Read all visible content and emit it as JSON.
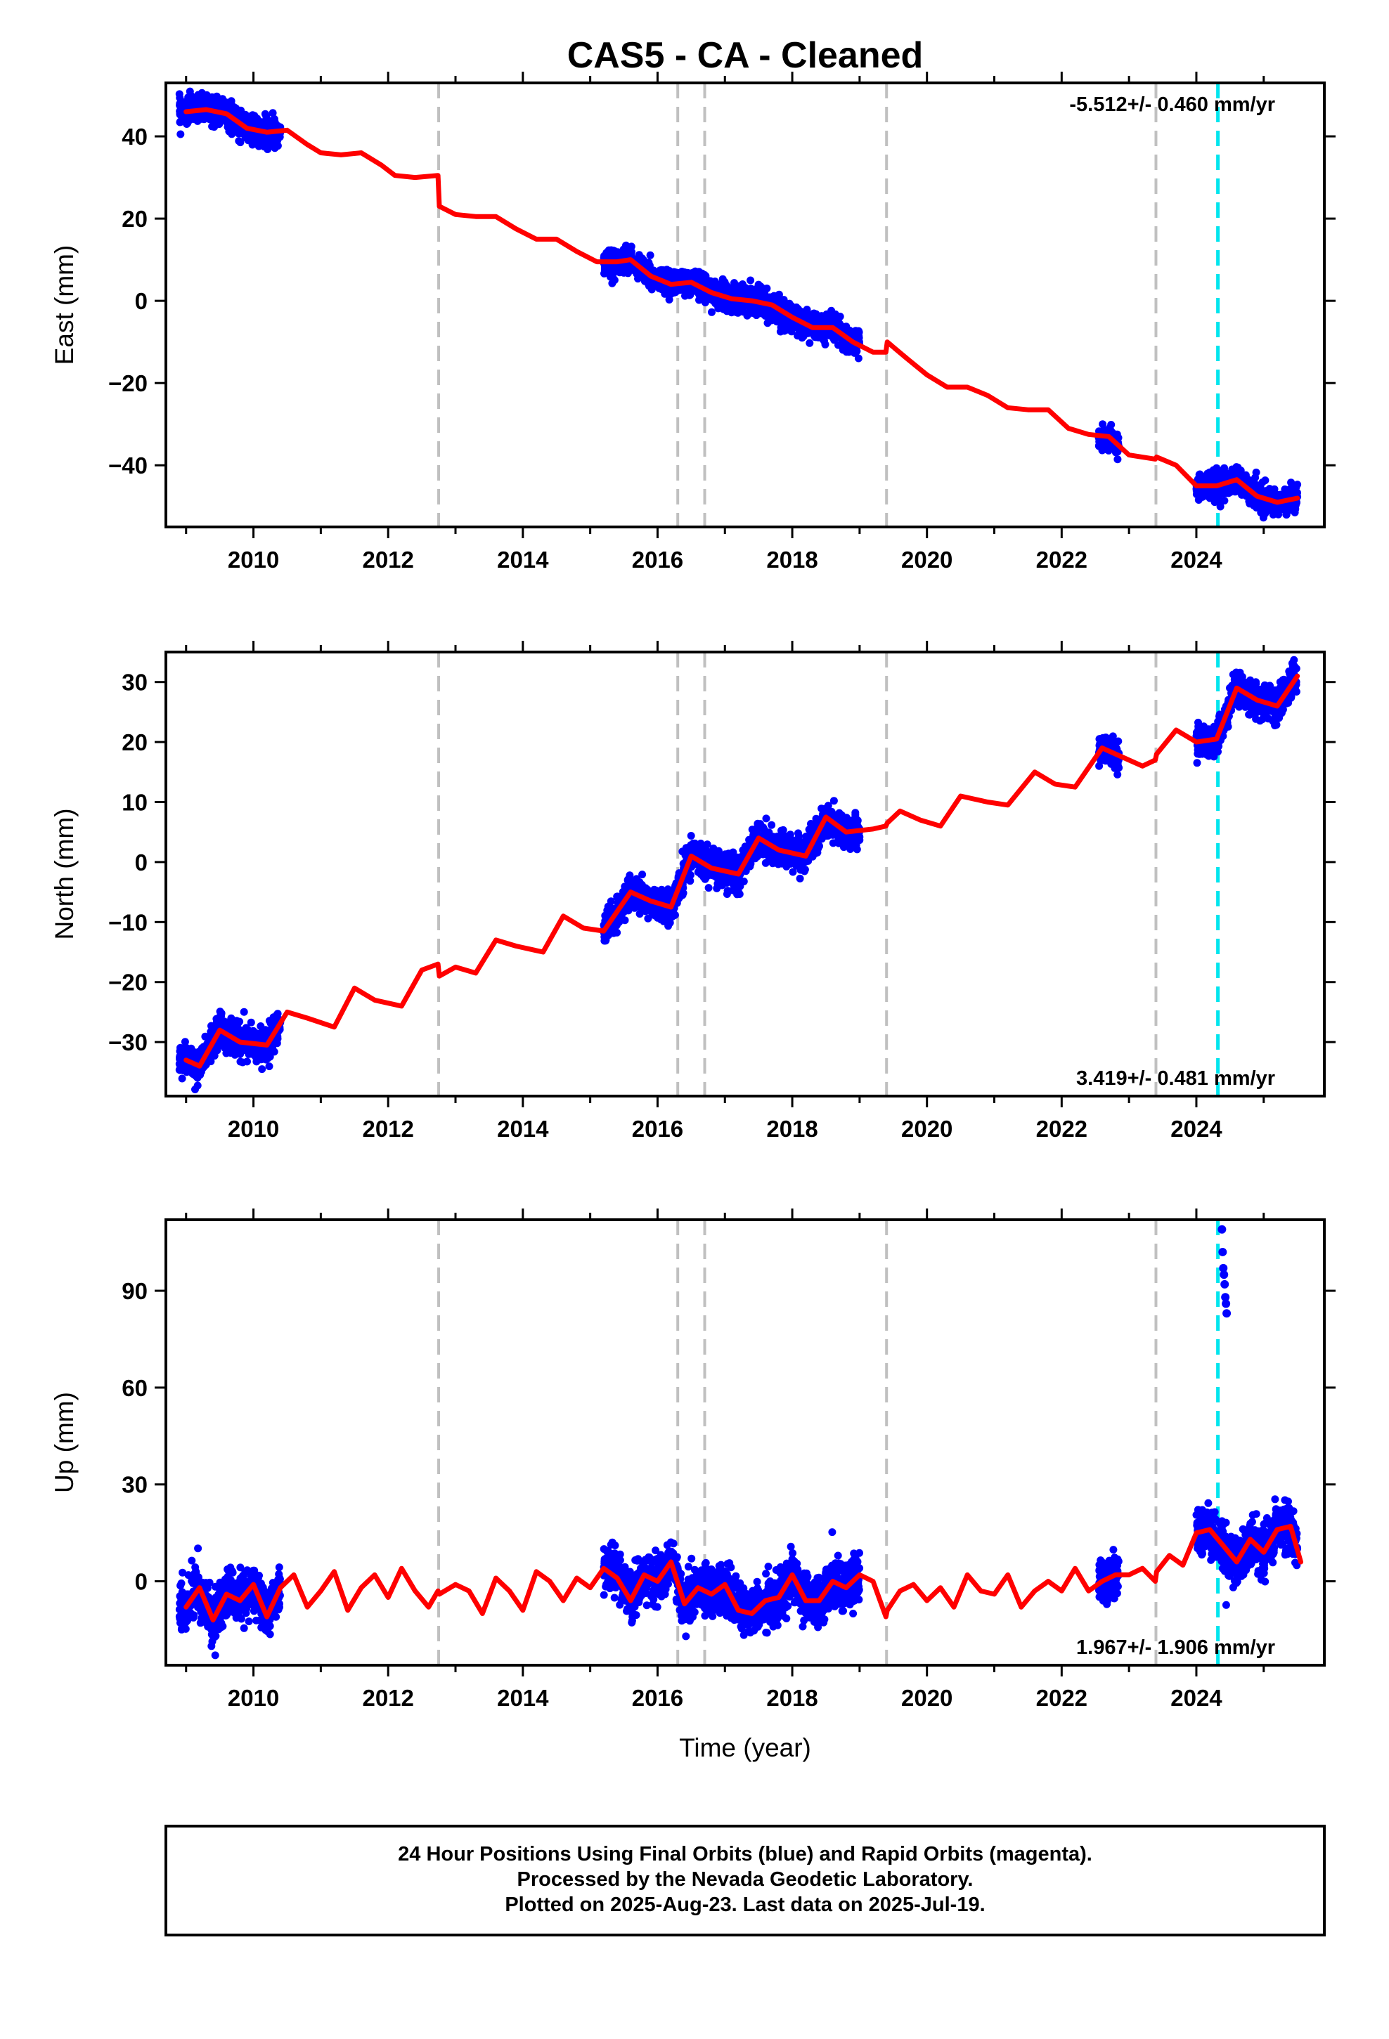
{
  "title": "CAS5  - CA - Cleaned",
  "footer": {
    "line1": "24 Hour Positions Using Final Orbits (blue) and Rapid Orbits (magenta).",
    "line2": "Processed by the Nevada Geodetic Laboratory.",
    "line3": "Plotted on 2025-Aug-23. Last data on 2025-Jul-19."
  },
  "colors": {
    "data": "#0000ff",
    "model": "#ff0000",
    "step": "#c0c0c0",
    "event": "#00e5ee"
  },
  "chart_data": [
    {
      "type": "scatter",
      "ylabel": "East (mm)",
      "xlabel": "",
      "rate_label": "-5.512+/- 0.460 mm/yr",
      "rate_position": "top-right",
      "xlim": [
        2008.7,
        2025.9
      ],
      "ylim": [
        -55,
        53
      ],
      "yticks": [
        40,
        20,
        0,
        -20,
        -40
      ],
      "xticks": [
        2010,
        2012,
        2014,
        2016,
        2018,
        2020,
        2022,
        2024
      ],
      "grid": false,
      "step_lines": [
        2012.75,
        2016.3,
        2016.7,
        2019.4,
        2023.4
      ],
      "event_lines": [
        2024.32
      ],
      "model": {
        "x": [
          2009.0,
          2009.3,
          2009.6,
          2009.9,
          2010.2,
          2010.5,
          2010.8,
          2011.0,
          2011.3,
          2011.6,
          2011.9,
          2012.1,
          2012.4,
          2012.74,
          2012.76,
          2013.0,
          2013.3,
          2013.6,
          2013.9,
          2014.2,
          2014.5,
          2014.8,
          2015.1,
          2015.4,
          2015.6,
          2015.9,
          2016.2,
          2016.5,
          2016.8,
          2017.1,
          2017.4,
          2017.7,
          2018.0,
          2018.3,
          2018.6,
          2018.9,
          2019.2,
          2019.39,
          2019.41,
          2019.7,
          2020.0,
          2020.3,
          2020.6,
          2020.9,
          2021.2,
          2021.5,
          2021.8,
          2022.1,
          2022.4,
          2022.7,
          2023.0,
          2023.39,
          2023.41,
          2023.7,
          2024.0,
          2024.3,
          2024.6,
          2024.9,
          2025.2,
          2025.5
        ],
        "y": [
          46,
          46.5,
          45.5,
          42,
          41,
          41.5,
          38,
          36,
          35.5,
          36,
          33,
          30.5,
          30,
          30.5,
          23,
          21,
          20.5,
          20.5,
          17.5,
          15,
          15,
          12,
          9.5,
          9.5,
          10,
          6,
          4,
          4.5,
          2,
          0.5,
          0,
          -1,
          -4,
          -6.5,
          -6.5,
          -10,
          -12.5,
          -12.5,
          -10,
          -14,
          -18,
          -21,
          -21,
          -23,
          -26,
          -26.5,
          -26.5,
          -31,
          -32.5,
          -33,
          -37.5,
          -38.5,
          -38,
          -40,
          -45,
          -45,
          -43.5,
          -47.5,
          -49,
          -48
        ]
      },
      "data_segments": [
        {
          "x": [
            2008.9,
            2010.4
          ],
          "center": [
            46.5,
            41.5
          ],
          "spread": 3.5
        },
        {
          "x": [
            2015.2,
            2019.0
          ],
          "center": [
            10,
            -10
          ],
          "spread": 3.5
        },
        {
          "x": [
            2022.55,
            2022.85
          ],
          "center": [
            -31,
            -36
          ],
          "spread": 3
        },
        {
          "x": [
            2024.0,
            2025.5
          ],
          "center": [
            -45,
            -49
          ],
          "spread": 3.5
        }
      ]
    },
    {
      "type": "scatter",
      "ylabel": "North (mm)",
      "xlabel": "",
      "rate_label": "3.419+/- 0.481 mm/yr",
      "rate_position": "bottom-right",
      "xlim": [
        2008.7,
        2025.9
      ],
      "ylim": [
        -39,
        35
      ],
      "yticks": [
        30,
        20,
        10,
        0,
        -10,
        -20,
        -30
      ],
      "xticks": [
        2010,
        2012,
        2014,
        2016,
        2018,
        2020,
        2022,
        2024
      ],
      "grid": false,
      "step_lines": [
        2012.75,
        2016.3,
        2016.7,
        2019.4,
        2023.4
      ],
      "event_lines": [
        2024.32
      ],
      "model": {
        "x": [
          2009.0,
          2009.2,
          2009.5,
          2009.8,
          2010.2,
          2010.5,
          2010.8,
          2011.2,
          2011.5,
          2011.8,
          2012.2,
          2012.5,
          2012.74,
          2012.76,
          2013.0,
          2013.3,
          2013.6,
          2013.9,
          2014.3,
          2014.6,
          2014.9,
          2015.2,
          2015.6,
          2015.9,
          2016.2,
          2016.5,
          2016.8,
          2017.2,
          2017.5,
          2017.8,
          2018.2,
          2018.5,
          2018.8,
          2019.2,
          2019.39,
          2019.41,
          2019.6,
          2019.9,
          2020.2,
          2020.5,
          2020.9,
          2021.2,
          2021.6,
          2021.9,
          2022.2,
          2022.6,
          2022.9,
          2023.2,
          2023.39,
          2023.41,
          2023.7,
          2024.0,
          2024.3,
          2024.6,
          2024.9,
          2025.2,
          2025.5
        ],
        "y": [
          -33,
          -34,
          -28,
          -30,
          -30.5,
          -25,
          -26,
          -27.5,
          -21,
          -23,
          -24,
          -18,
          -17,
          -19,
          -17.5,
          -18.5,
          -13,
          -14,
          -15,
          -9,
          -11,
          -11.5,
          -5,
          -6.5,
          -7.5,
          1,
          -1,
          -2,
          4,
          2,
          1,
          7.5,
          5,
          5.5,
          6,
          6.5,
          8.5,
          7,
          6,
          11,
          10,
          9.5,
          15,
          13,
          12.5,
          19,
          17.5,
          16,
          17,
          18,
          22,
          20,
          20.5,
          29,
          27,
          26,
          31
        ]
      },
      "data_segments": [
        {
          "x": [
            2008.9,
            2010.4
          ],
          "center": [
            -33,
            -30
          ],
          "spread": 3
        },
        {
          "x": [
            2015.2,
            2019.0
          ],
          "center": [
            -11,
            6
          ],
          "spread": 3
        },
        {
          "x": [
            2022.55,
            2022.85
          ],
          "center": [
            19,
            17
          ],
          "spread": 2.5
        },
        {
          "x": [
            2024.0,
            2025.5
          ],
          "center": [
            20,
            31
          ],
          "spread": 3
        }
      ]
    },
    {
      "type": "scatter",
      "ylabel": "Up (mm)",
      "xlabel": "Time (year)",
      "rate_label": "1.967+/- 1.906 mm/yr",
      "rate_position": "bottom-right",
      "xlim": [
        2008.7,
        2025.9
      ],
      "ylim": [
        -26,
        112
      ],
      "yticks": [
        90,
        60,
        30,
        0
      ],
      "xticks": [
        2010,
        2012,
        2014,
        2016,
        2018,
        2020,
        2022,
        2024
      ],
      "grid": false,
      "step_lines": [
        2012.75,
        2016.3,
        2016.7,
        2019.4,
        2023.4
      ],
      "event_lines": [
        2024.32
      ],
      "model": {
        "x": [
          2009.0,
          2009.2,
          2009.4,
          2009.6,
          2009.8,
          2010.0,
          2010.2,
          2010.4,
          2010.6,
          2010.8,
          2011.0,
          2011.2,
          2011.4,
          2011.6,
          2011.8,
          2012.0,
          2012.2,
          2012.4,
          2012.6,
          2012.74,
          2012.76,
          2013.0,
          2013.2,
          2013.4,
          2013.6,
          2013.8,
          2014.0,
          2014.2,
          2014.4,
          2014.6,
          2014.8,
          2015.0,
          2015.2,
          2015.4,
          2015.6,
          2015.8,
          2016.0,
          2016.2,
          2016.4,
          2016.6,
          2016.8,
          2017.0,
          2017.2,
          2017.4,
          2017.6,
          2017.8,
          2018.0,
          2018.2,
          2018.4,
          2018.6,
          2018.8,
          2019.0,
          2019.2,
          2019.39,
          2019.41,
          2019.6,
          2019.8,
          2020.0,
          2020.2,
          2020.4,
          2020.6,
          2020.8,
          2021.0,
          2021.2,
          2021.4,
          2021.6,
          2021.8,
          2022.0,
          2022.2,
          2022.4,
          2022.6,
          2022.8,
          2023.0,
          2023.2,
          2023.39,
          2023.41,
          2023.6,
          2023.8,
          2024.0,
          2024.2,
          2024.4,
          2024.6,
          2024.8,
          2025.0,
          2025.2,
          2025.4,
          2025.55
        ],
        "y": [
          -8,
          -2,
          -12,
          -4,
          -6,
          -1,
          -11,
          -2,
          2,
          -8,
          -3,
          3,
          -9,
          -2,
          2,
          -5,
          4,
          -3,
          -8,
          -3,
          -4,
          -1,
          -3,
          -10,
          1,
          -3,
          -9,
          3,
          0,
          -6,
          1,
          -2,
          4,
          1,
          -6,
          2,
          0,
          6,
          -7,
          -2,
          -4,
          -1,
          -9,
          -10,
          -6,
          -5,
          2,
          -6,
          -6,
          0,
          -2,
          2,
          0,
          -11,
          -9,
          -3,
          -1,
          -6,
          -2,
          -8,
          2,
          -3,
          -4,
          2,
          -8,
          -3,
          0,
          -3,
          4,
          -3,
          0,
          2,
          2,
          4,
          0,
          3,
          8,
          5,
          15,
          16,
          11,
          6,
          13,
          9,
          16,
          17,
          6
        ]
      },
      "data_segments": [
        {
          "x": [
            2008.9,
            2010.4
          ],
          "center": [
            -8,
            -2
          ],
          "spread": 8
        },
        {
          "x": [
            2015.2,
            2019.0
          ],
          "center": [
            0,
            -2
          ],
          "spread": 8
        },
        {
          "x": [
            2022.55,
            2022.85
          ],
          "center": [
            -3,
            0
          ],
          "spread": 7
        },
        {
          "x": [
            2024.0,
            2025.5
          ],
          "center": [
            14,
            5
          ],
          "spread": 8
        }
      ],
      "outliers": {
        "x": [
          2024.38,
          2024.39,
          2024.4,
          2024.41,
          2024.42,
          2024.43,
          2024.44,
          2024.45
        ],
        "y": [
          109,
          102,
          97,
          95,
          92,
          88,
          86,
          83
        ]
      }
    }
  ]
}
